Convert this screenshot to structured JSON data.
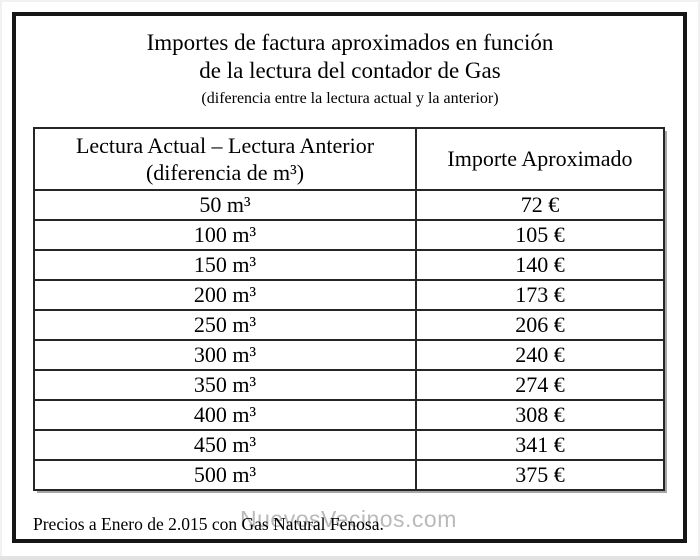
{
  "header": {
    "title_line1": "Importes de factura aproximados en función",
    "title_line2": "de la lectura del contador de Gas",
    "subtitle": "(diferencia entre la lectura actual y la anterior)"
  },
  "table": {
    "header": {
      "col1_line1": "Lectura Actual – Lectura Anterior",
      "col1_line2": "(diferencia de m³)",
      "col2": "Importe Aproximado"
    },
    "rows": [
      {
        "lectura": "50 m³",
        "importe": "72 €"
      },
      {
        "lectura": "100 m³",
        "importe": "105 €"
      },
      {
        "lectura": "150 m³",
        "importe": "140 €"
      },
      {
        "lectura": "200 m³",
        "importe": "173 €"
      },
      {
        "lectura": "250 m³",
        "importe": "206 €"
      },
      {
        "lectura": "300 m³",
        "importe": "240 €"
      },
      {
        "lectura": "350 m³",
        "importe": "274 €"
      },
      {
        "lectura": "400 m³",
        "importe": "308 €"
      },
      {
        "lectura": "450 m³",
        "importe": "341 €"
      },
      {
        "lectura": "500 m³",
        "importe": "375 €"
      }
    ]
  },
  "footer": {
    "note": "Precios a Enero de 2.015 con Gas Natural Fenosa.",
    "watermark": "NuevosVecinos.com"
  },
  "colors": {
    "frame_border": "#161616",
    "table_border": "#262626",
    "text": "#000000",
    "watermark": "#b3b3b3",
    "table_shadow": "#a6a6a6",
    "background": "#ffffff"
  }
}
